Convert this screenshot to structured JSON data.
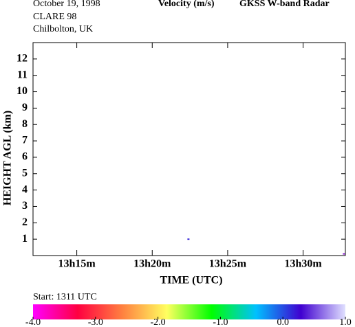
{
  "header": {
    "date": "October  19, 1998",
    "campaign": "CLARE 98",
    "site": "Chilbolton, UK",
    "quantity": "Velocity (m/s)",
    "instrument": "GKSS  W-band Radar"
  },
  "chart_data": {
    "type": "scatter",
    "x_label": "TIME (UTC)",
    "y_label": "HEIGHT AGL (km)",
    "x": [
      802.4,
      812.7
    ],
    "values": [
      1.0,
      0.1
    ],
    "colors": [
      "#3a2ad8",
      "#8a1ed0"
    ],
    "xlim": [
      792.1,
      812.8
    ],
    "xticks": [
      {
        "value": 795,
        "label": "13h15m"
      },
      {
        "value": 800,
        "label": "13h20m"
      },
      {
        "value": 805,
        "label": "13h25m"
      },
      {
        "value": 810,
        "label": "13h30m"
      }
    ],
    "ylim": [
      0,
      13
    ],
    "yticks": [
      1,
      2,
      3,
      4,
      5,
      6,
      7,
      8,
      9,
      10,
      11,
      12
    ],
    "colorbar": {
      "caption": "Start: 1311 UTC",
      "lim": [
        -4,
        1
      ],
      "ticks": [
        {
          "value": -4,
          "label": "-4.0"
        },
        {
          "value": -3,
          "label": "-3.0"
        },
        {
          "value": -2,
          "label": "-2.0"
        },
        {
          "value": -1,
          "label": "-1.0"
        },
        {
          "value": 0,
          "label": "0.0"
        },
        {
          "value": 1,
          "label": "1.0"
        }
      ],
      "colors": [
        "#ff00ff",
        "#ff0040",
        "#ff8040",
        "#ffff60",
        "#00ff00",
        "#00c0ff",
        "#4000d0",
        "#e0e0ff"
      ]
    }
  }
}
